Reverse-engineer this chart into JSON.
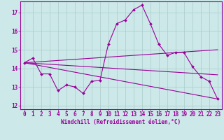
{
  "bg_color": "#cce8e8",
  "line_color": "#990099",
  "grid_color": "#aacccc",
  "xlim": [
    -0.5,
    23.5
  ],
  "ylim": [
    11.8,
    17.6
  ],
  "yticks": [
    12,
    13,
    14,
    15,
    16,
    17
  ],
  "xticks": [
    0,
    1,
    2,
    3,
    4,
    5,
    6,
    7,
    8,
    9,
    10,
    11,
    12,
    13,
    14,
    15,
    16,
    17,
    18,
    19,
    20,
    21,
    22,
    23
  ],
  "xlabel": "Windchill (Refroidissement éolien,°C)",
  "series": [
    {
      "x": [
        0,
        1,
        2,
        3,
        4,
        5,
        6,
        7,
        8,
        9,
        10,
        11,
        12,
        13,
        14,
        15,
        16,
        17,
        18,
        19,
        20,
        21,
        22,
        23
      ],
      "y": [
        14.3,
        14.55,
        13.7,
        13.7,
        12.8,
        13.1,
        13.0,
        12.65,
        13.3,
        13.35,
        15.3,
        16.4,
        16.6,
        17.15,
        17.4,
        16.4,
        15.3,
        14.7,
        14.85,
        14.85,
        14.1,
        13.55,
        13.3,
        12.35
      ],
      "has_markers": true
    },
    {
      "x": [
        0,
        23
      ],
      "y": [
        14.3,
        12.35
      ],
      "has_markers": false
    },
    {
      "x": [
        0,
        23
      ],
      "y": [
        14.3,
        15.0
      ],
      "has_markers": false
    },
    {
      "x": [
        0,
        23
      ],
      "y": [
        14.3,
        13.65
      ],
      "has_markers": false
    }
  ]
}
